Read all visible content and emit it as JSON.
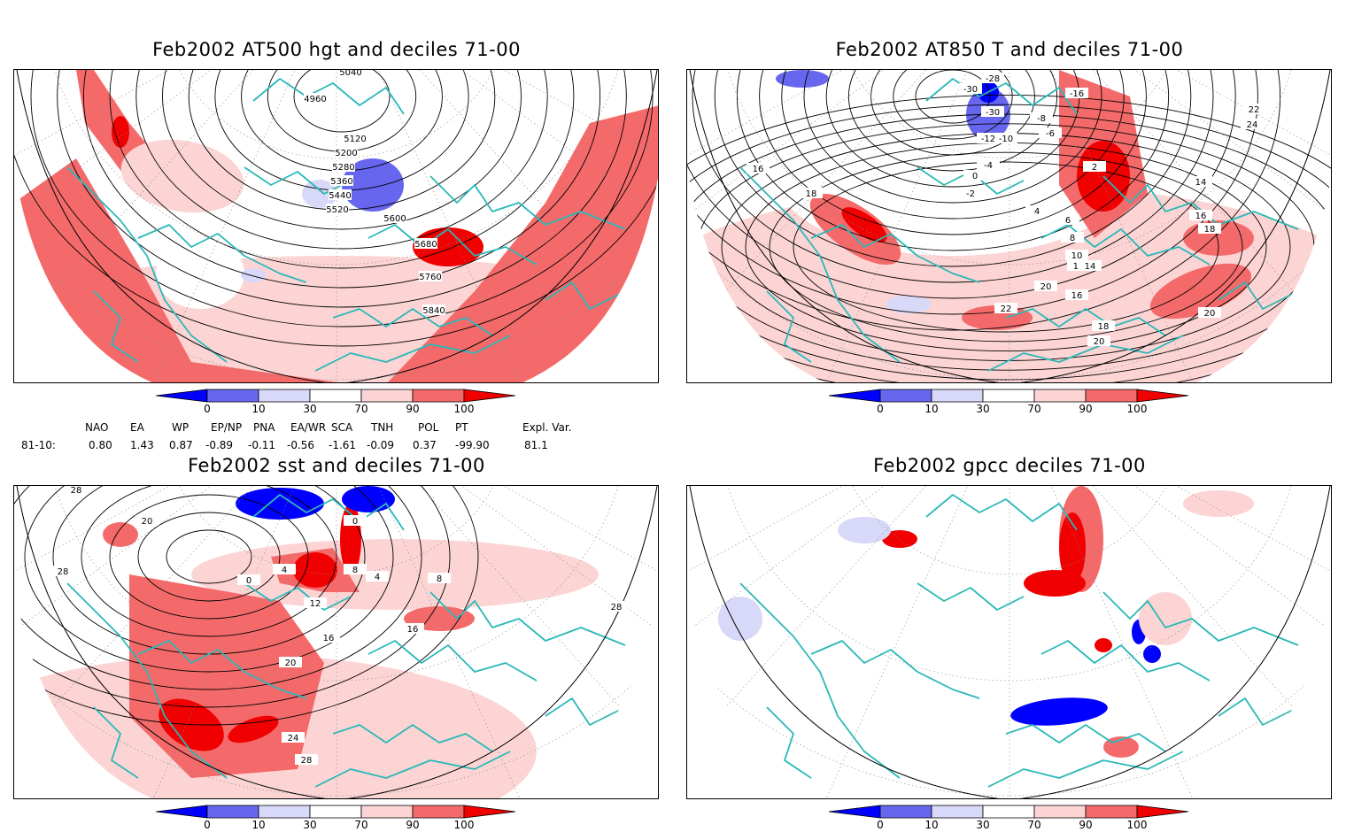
{
  "panels": [
    {
      "title": "Feb2002 AT500 hgt and deciles 71-00",
      "contour_labels": [
        "4960",
        "5040",
        "5120",
        "5200",
        "5280",
        "5360",
        "5440",
        "5520",
        "5600",
        "5680",
        "5760",
        "5840"
      ]
    },
    {
      "title": "Feb2002 AT850 T and deciles 71-00",
      "contour_labels": [
        "-28",
        "-30",
        "-30",
        "-16",
        "-12",
        "-10",
        "-8",
        "-6",
        "-4",
        "-2",
        "0",
        "2",
        "4",
        "6",
        "8",
        "10",
        "12",
        "14",
        "16",
        "18",
        "20",
        "22",
        "24",
        "16",
        "18",
        "14",
        "16",
        "18",
        "20",
        "22",
        "20"
      ]
    },
    {
      "title": "Feb2002 sst and deciles 71-00",
      "contour_labels": [
        "28",
        "28",
        "20",
        "0",
        "4",
        "8",
        "12",
        "16",
        "20",
        "24",
        "28",
        "28",
        "16",
        "4",
        "8",
        "0"
      ]
    },
    {
      "title": "Feb2002 gpcc deciles 71-00",
      "contour_labels": []
    }
  ],
  "colorbar": {
    "labels": [
      "0",
      "10",
      "30",
      "70",
      "90",
      "100"
    ],
    "colors": {
      "dark_blue": "#0000ff",
      "mid_blue": "#6666ee",
      "light_blue": "#d8d8f8",
      "white": "#ffffff",
      "light_red": "#fcd4d4",
      "mid_red": "#f46a6a",
      "dark_red": "#f00000"
    }
  },
  "indices": {
    "row_label": "81-10:",
    "names": [
      "NAO",
      "EA",
      "WP",
      "EP/NP",
      "PNA",
      "EA/WR",
      "SCA",
      "TNH",
      "POL",
      "PT",
      "Expl. Var."
    ],
    "values": [
      "0.80",
      "1.43",
      "0.87",
      "-0.89",
      "-0.11",
      "-0.56",
      "-1.61",
      "-0.09",
      "0.37",
      "-99.90",
      "81.1"
    ]
  },
  "colors": {
    "coast": "#2ab8b8",
    "contour": "#000000",
    "grid": "#8a8a8a"
  }
}
